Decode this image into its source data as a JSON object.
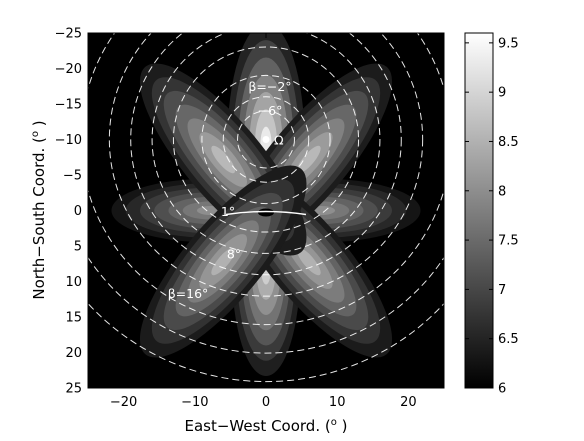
{
  "chart_data": {
    "type": "heatmap",
    "xlabel": "East−West Coord. ( o )",
    "ylabel": "North−South Coord. ( o )",
    "xlim": [
      -25,
      25
    ],
    "ylim": [
      25,
      -25
    ],
    "x_ticks": [
      "−20",
      "−10",
      "0",
      "10",
      "20"
    ],
    "x_tick_values": [
      -20,
      -10,
      0,
      10,
      20
    ],
    "y_ticks": [
      "−25",
      "−20",
      "−15",
      "−10",
      "−5",
      "0",
      "5",
      "10",
      "15",
      "20",
      "25"
    ],
    "y_tick_values": [
      -25,
      -20,
      -15,
      -10,
      -5,
      0,
      5,
      10,
      15,
      20,
      25
    ],
    "colorbar": {
      "range": [
        6,
        9.6
      ],
      "tick_labels": [
        "9.5",
        "9",
        "8.5",
        "8",
        "7.5",
        "7",
        "6.5",
        "6"
      ],
      "tick_values": [
        9.5,
        9,
        8.5,
        8,
        7.5,
        7,
        6.5,
        6
      ],
      "colormap": "gray"
    },
    "lobes": [
      {
        "angle": 90,
        "peak": 9.3,
        "length": 17
      },
      {
        "angle": -90,
        "peak": 8.9,
        "length": 15
      },
      {
        "angle": 0,
        "peak": 8.0,
        "length": 14
      },
      {
        "angle": 180,
        "peak": 8.0,
        "length": 14
      },
      {
        "angle": 50,
        "peak": 8.6,
        "length": 17
      },
      {
        "angle": -50,
        "peak": 8.5,
        "length": 17
      },
      {
        "angle": 130,
        "peak": 8.6,
        "length": 17
      },
      {
        "angle": -130,
        "peak": 8.5,
        "length": 17
      }
    ],
    "beta_contours": [
      {
        "label": "β=−2°",
        "center": [
          0,
          -10
        ],
        "radius": 6
      },
      {
        "label": "−6°",
        "center": [
          0,
          -10
        ],
        "radius": 4
      },
      {
        "label": "1°",
        "center": [
          0,
          -10
        ],
        "radius": 13
      },
      {
        "label": "8°",
        "center": [
          0,
          -10
        ],
        "radius": 19
      },
      {
        "label": "β=16°",
        "center": [
          0,
          -10
        ],
        "radius": 26
      }
    ],
    "extra_contour_radii": [
      9,
      16,
      22,
      30,
      34
    ],
    "marker": {
      "label": "Ω",
      "x": 0,
      "y": -10
    }
  },
  "colors": {
    "background": "#000000",
    "contour": "#ffffff",
    "frame": "#000000"
  }
}
